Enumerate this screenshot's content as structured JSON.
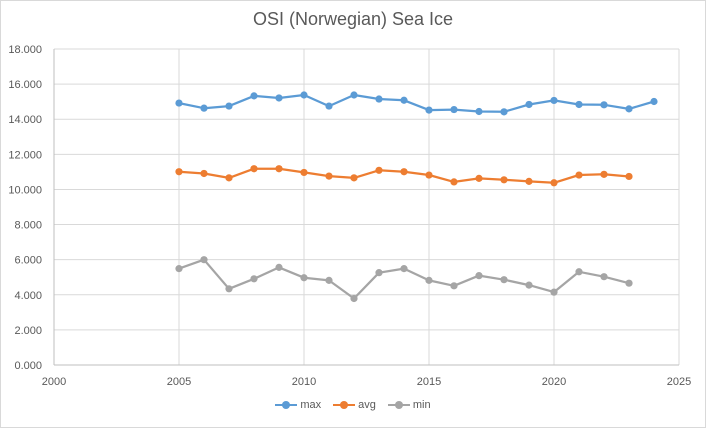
{
  "chart_data": {
    "type": "line",
    "title": "OSI (Norwegian) Sea Ice",
    "xlabel": "",
    "ylabel": "",
    "xlim": [
      2000,
      2025
    ],
    "ylim": [
      0,
      18
    ],
    "x_ticks": [
      2000,
      2005,
      2010,
      2015,
      2020,
      2025
    ],
    "x_tick_labels": [
      "2000",
      "2005",
      "2010",
      "2015",
      "2020",
      "2025"
    ],
    "y_ticks": [
      0,
      2,
      4,
      6,
      8,
      10,
      12,
      14,
      16,
      18
    ],
    "y_tick_labels": [
      "0.000",
      "2.000",
      "4.000",
      "6.000",
      "8.000",
      "10.000",
      "12.000",
      "14.000",
      "16.000",
      "18.000"
    ],
    "grid": true,
    "legend_position": "bottom",
    "series": [
      {
        "name": "max",
        "color": "#5b9bd5",
        "x": [
          2005,
          2006,
          2007,
          2008,
          2009,
          2010,
          2011,
          2012,
          2013,
          2014,
          2015,
          2016,
          2017,
          2018,
          2019,
          2020,
          2021,
          2022,
          2023,
          2024
        ],
        "values": [
          14.92,
          14.63,
          14.75,
          15.33,
          15.21,
          15.38,
          14.75,
          15.38,
          15.15,
          15.08,
          14.52,
          14.55,
          14.44,
          14.42,
          14.84,
          15.07,
          14.84,
          14.82,
          14.59,
          15.01
        ]
      },
      {
        "name": "avg",
        "color": "#ed7d31",
        "x": [
          2005,
          2006,
          2007,
          2008,
          2009,
          2010,
          2011,
          2012,
          2013,
          2014,
          2015,
          2016,
          2017,
          2018,
          2019,
          2020,
          2021,
          2022,
          2023
        ],
        "values": [
          11.01,
          10.91,
          10.66,
          11.18,
          11.18,
          10.97,
          10.76,
          10.66,
          11.09,
          11.01,
          10.82,
          10.43,
          10.63,
          10.55,
          10.46,
          10.38,
          10.82,
          10.86,
          10.74
        ]
      },
      {
        "name": "min",
        "color": "#a5a5a5",
        "x": [
          2005,
          2006,
          2007,
          2008,
          2009,
          2010,
          2011,
          2012,
          2013,
          2014,
          2015,
          2016,
          2017,
          2018,
          2019,
          2020,
          2021,
          2022,
          2023
        ],
        "values": [
          5.49,
          6.0,
          4.34,
          4.91,
          5.56,
          4.97,
          4.82,
          3.79,
          5.26,
          5.49,
          4.82,
          4.51,
          5.09,
          4.86,
          4.55,
          4.15,
          5.31,
          5.03,
          4.66
        ]
      }
    ]
  }
}
